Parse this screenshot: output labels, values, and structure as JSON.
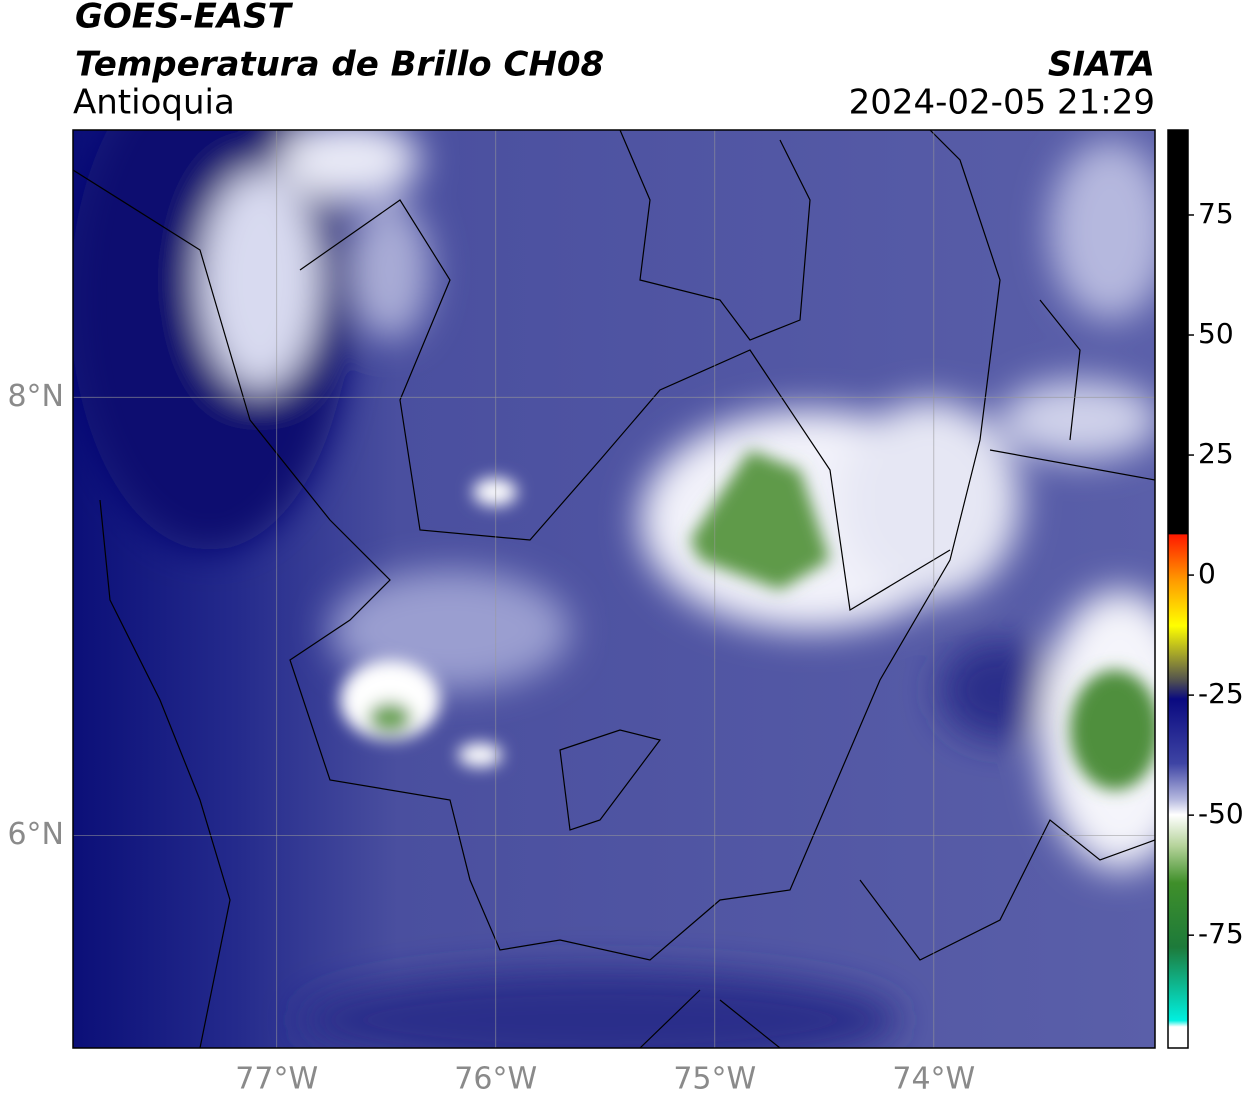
{
  "header": {
    "satellite": "GOES-EAST",
    "product": "Temperatura de Brillo CH08",
    "region": "Antioquia",
    "source": "SIATA",
    "timestamp": "2024-02-05 21:29"
  },
  "map": {
    "lonlim": [
      -77.93,
      -72.99
    ],
    "latlim": [
      5.03,
      9.22
    ],
    "lonticks": [
      {
        "value": -77,
        "label": "77°W"
      },
      {
        "value": -76,
        "label": "76°W"
      },
      {
        "value": -75,
        "label": "75°W"
      },
      {
        "value": -74,
        "label": "74°W"
      }
    ],
    "latticks": [
      {
        "value": 8,
        "label": "8°N"
      },
      {
        "value": 6,
        "label": "6°N"
      }
    ],
    "grid": true
  },
  "colorbar": {
    "lim": [
      -98.5,
      92.7
    ],
    "ticks": [
      75,
      50,
      25,
      0,
      -25,
      -50,
      -75
    ]
  }
}
